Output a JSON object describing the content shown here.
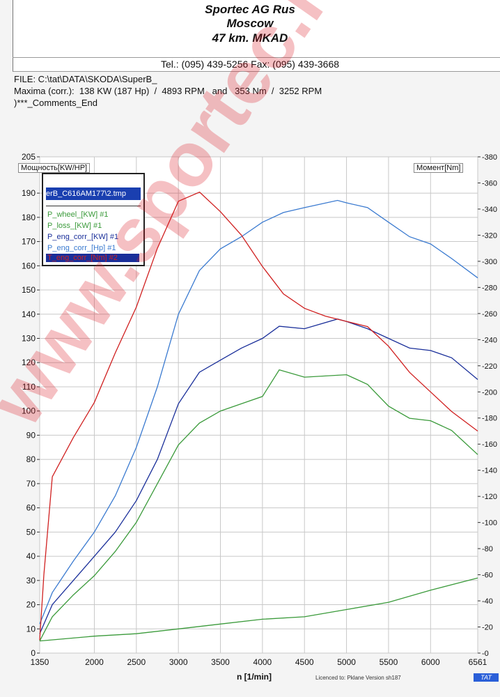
{
  "header": {
    "company": "Sportec AG Rus",
    "city": "Moscow",
    "address": "47 km. MKAD",
    "contact": "Tel.: (095) 439-5256 Fax: (095) 439-3668"
  },
  "info": {
    "file": "FILE: C:\\tat\\DATA\\SKODA\\SuperB_",
    "maxima": "Maxima (corr.):  138 KW (187 Hp)  /  4893 RPM   and   353 Nm  /  3252 RPM",
    "comments": ")***_Comments_End"
  },
  "left_axis_box": "Мощность[KW/HP]",
  "right_axis_box": "Момент[Nm]",
  "legend": {
    "selected": "erB_C616AM177\\2.tmp",
    "items": [
      {
        "label": "P_wheel_[KW] #1",
        "color": "#3a9a3a"
      },
      {
        "label": "P_loss_[KW] #1",
        "color": "#3a9a3a"
      },
      {
        "label": "P_eng_corr_[KW] #1",
        "color": "#1a2f9a"
      },
      {
        "label": "P_eng_corr_[Hp] #1",
        "color": "#3a7ad0"
      },
      {
        "label": "T_eng_corr_[Nm] #2",
        "color": "#d02020"
      }
    ]
  },
  "x_axis_label": "n  [1/min]",
  "license": "Licenced to: Pklane   Version sh187",
  "badge": "TAT",
  "watermark": "www.sportec.ru",
  "chart_data": {
    "type": "line",
    "xlabel": "n  [1/min]",
    "ylabel": "Мощность[KW/HP]",
    "y2label": "Момент[Nm]",
    "xlim": [
      1350,
      6561
    ],
    "ylim": [
      0,
      205
    ],
    "y2lim": [
      0,
      380
    ],
    "xticks": [
      1350,
      2000,
      2500,
      3000,
      3500,
      4000,
      4500,
      5000,
      5500,
      6000,
      6561
    ],
    "yticks": [
      0,
      10,
      20,
      30,
      40,
      50,
      60,
      70,
      80,
      90,
      100,
      110,
      120,
      130,
      140,
      150,
      160,
      170,
      180,
      190,
      205
    ],
    "y2ticks": [
      0,
      20,
      40,
      60,
      80,
      100,
      120,
      140,
      160,
      180,
      200,
      220,
      240,
      260,
      280,
      300,
      320,
      340,
      360,
      380
    ],
    "grid": true,
    "legend_position": "top-left",
    "series": [
      {
        "name": "P_wheel_[KW] #1",
        "axis": "left",
        "color": "#3a9a3a",
        "x": [
          1350,
          1500,
          1750,
          2000,
          2250,
          2500,
          2750,
          3000,
          3250,
          3500,
          3750,
          4000,
          4200,
          4500,
          5000,
          5250,
          5500,
          5750,
          6000,
          6250,
          6561
        ],
        "y": [
          5,
          15,
          24,
          32,
          42,
          54,
          70,
          86,
          95,
          100,
          103,
          106,
          117,
          114,
          115,
          111,
          102,
          97,
          96,
          92,
          82
        ]
      },
      {
        "name": "P_loss_[KW] #1",
        "axis": "left",
        "color": "#3a9a3a",
        "x": [
          1350,
          2000,
          2500,
          3000,
          3500,
          4000,
          4500,
          5000,
          5500,
          6000,
          6561
        ],
        "y": [
          5,
          7,
          8,
          10,
          12,
          14,
          15,
          18,
          21,
          26,
          31
        ]
      },
      {
        "name": "P_eng_corr_[KW] #1",
        "axis": "left",
        "color": "#1a2f9a",
        "x": [
          1350,
          1500,
          1750,
          2000,
          2250,
          2500,
          2750,
          3000,
          3250,
          3500,
          3750,
          4000,
          4200,
          4500,
          4893,
          5000,
          5250,
          5500,
          5750,
          6000,
          6250,
          6561
        ],
        "y": [
          8,
          20,
          30,
          40,
          50,
          63,
          80,
          103,
          116,
          121,
          126,
          130,
          135,
          134,
          138,
          137,
          134,
          130,
          126,
          125,
          122,
          113
        ]
      },
      {
        "name": "P_eng_corr_[Hp] #1",
        "axis": "left",
        "color": "#3a7ad0",
        "x": [
          1350,
          1500,
          1750,
          2000,
          2250,
          2500,
          2750,
          3000,
          3250,
          3500,
          3750,
          4000,
          4250,
          4500,
          4893,
          5000,
          5250,
          5500,
          5750,
          6000,
          6250,
          6561
        ],
        "y": [
          12,
          25,
          38,
          50,
          65,
          85,
          110,
          140,
          158,
          167,
          172,
          178,
          182,
          184,
          187,
          186,
          184,
          178,
          172,
          169,
          163,
          155
        ]
      },
      {
        "name": "T_eng_corr_[Nm] #2",
        "axis": "right",
        "color": "#d02020",
        "x": [
          1350,
          1400,
          1500,
          1750,
          2000,
          2250,
          2500,
          2750,
          3000,
          3252,
          3500,
          3750,
          4000,
          4250,
          4500,
          4750,
          5000,
          5250,
          5500,
          5750,
          6000,
          6250,
          6561
        ],
        "y": [
          10,
          60,
          135,
          165,
          192,
          230,
          265,
          310,
          346,
          353,
          338,
          320,
          296,
          275,
          264,
          258,
          254,
          250,
          235,
          215,
          200,
          185,
          170
        ]
      }
    ]
  }
}
